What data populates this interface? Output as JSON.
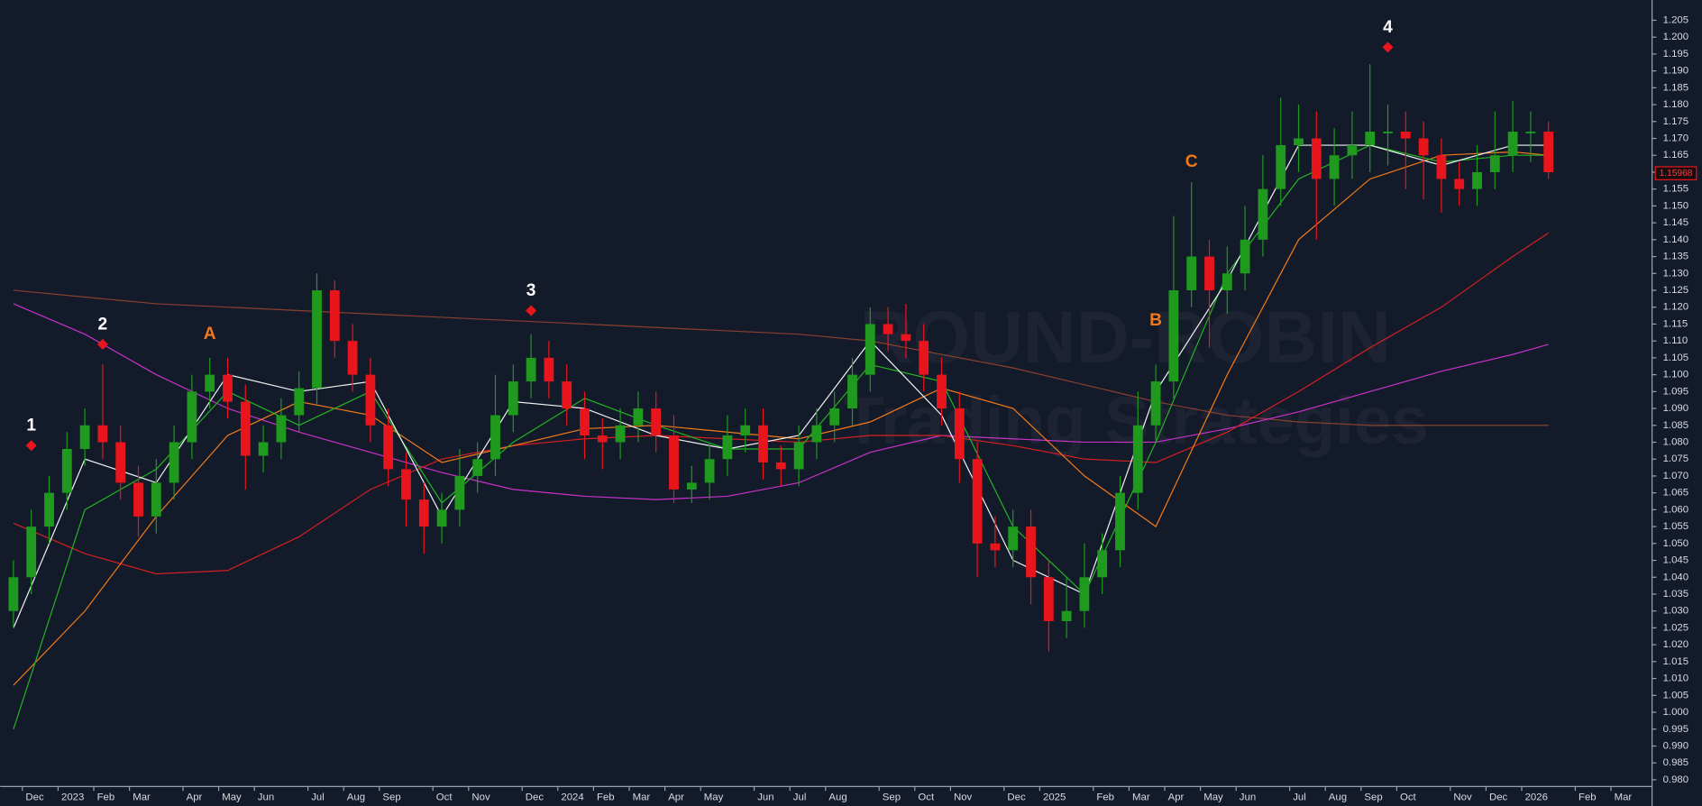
{
  "chart_data": {
    "type": "candlestick",
    "watermark": {
      "line1": "ROUND-ROBIN",
      "line2": "Trading Strategies"
    },
    "categories": [
      null,
      "Dec",
      null,
      "2023",
      null,
      "Feb",
      null,
      "Mar",
      null,
      null,
      "Apr",
      null,
      "May",
      null,
      "Jun",
      null,
      null,
      "Jul",
      null,
      "Aug",
      null,
      "Sep",
      null,
      null,
      "Oct",
      null,
      "Nov",
      null,
      null,
      "Dec",
      null,
      "2024",
      null,
      "Feb",
      null,
      "Mar",
      null,
      "Apr",
      null,
      "May",
      null,
      null,
      "Jun",
      null,
      "Jul",
      null,
      "Aug",
      null,
      null,
      "Sep",
      null,
      "Oct",
      null,
      "Nov",
      null,
      null,
      "Dec",
      null,
      "2025",
      null,
      null,
      "Feb",
      null,
      "Mar",
      null,
      "Apr",
      null,
      "May",
      null,
      "Jun",
      null,
      null,
      "Jul",
      null,
      "Aug",
      null,
      "Sep",
      null,
      "Oct",
      null,
      null,
      "Nov",
      null,
      "Dec",
      null,
      "2026",
      null,
      null,
      "Feb",
      null,
      "Mar",
      null
    ],
    "open": [
      1.03,
      1.04,
      1.055,
      1.065,
      1.078,
      1.085,
      1.08,
      1.068,
      1.058,
      1.068,
      1.08,
      1.095,
      1.1,
      1.092,
      1.076,
      1.08,
      1.088,
      1.096,
      1.125,
      1.11,
      1.1,
      1.085,
      1.072,
      1.063,
      1.055,
      1.06,
      1.07,
      1.075,
      1.088,
      1.098,
      1.105,
      1.098,
      1.09,
      1.082,
      1.08,
      1.085,
      1.09,
      1.082,
      1.066,
      1.068,
      1.075,
      1.082,
      1.085,
      1.074,
      1.072,
      1.08,
      1.085,
      1.09,
      1.1,
      1.115,
      1.112,
      1.11,
      1.1,
      1.09,
      1.075,
      1.05,
      1.048,
      1.055,
      1.04,
      1.027,
      1.03,
      1.04,
      1.048,
      1.065,
      1.085,
      1.098,
      1.125,
      1.135,
      1.125,
      1.13,
      1.14,
      1.155,
      1.168,
      1.17,
      1.158,
      1.165,
      1.168,
      1.172,
      1.172,
      1.17,
      1.165,
      1.158,
      1.155,
      1.16,
      1.165,
      1.172,
      1.172,
      null,
      null,
      null,
      null,
      null
    ],
    "high": [
      1.045,
      1.06,
      1.07,
      1.083,
      1.09,
      1.103,
      1.085,
      1.073,
      1.075,
      1.085,
      1.1,
      1.105,
      1.105,
      1.097,
      1.085,
      1.093,
      1.101,
      1.13,
      1.128,
      1.115,
      1.105,
      1.09,
      1.077,
      1.068,
      1.065,
      1.078,
      1.08,
      1.1,
      1.103,
      1.112,
      1.11,
      1.103,
      1.095,
      1.087,
      1.09,
      1.095,
      1.095,
      1.088,
      1.073,
      1.08,
      1.088,
      1.09,
      1.09,
      1.079,
      1.085,
      1.09,
      1.095,
      1.105,
      1.12,
      1.12,
      1.121,
      1.115,
      1.105,
      1.095,
      1.08,
      1.058,
      1.06,
      1.06,
      1.045,
      1.04,
      1.05,
      1.053,
      1.07,
      1.095,
      1.103,
      1.147,
      1.157,
      1.14,
      1.138,
      1.15,
      1.165,
      1.182,
      1.18,
      1.178,
      1.173,
      1.178,
      1.192,
      1.18,
      1.178,
      1.175,
      1.17,
      1.163,
      1.168,
      1.178,
      1.181,
      1.178,
      1.175,
      null,
      null,
      null,
      null,
      null
    ],
    "low": [
      1.025,
      1.035,
      1.05,
      1.06,
      1.073,
      1.075,
      1.063,
      1.052,
      1.053,
      1.063,
      1.075,
      1.09,
      1.087,
      1.066,
      1.071,
      1.075,
      1.083,
      1.091,
      1.105,
      1.095,
      1.08,
      1.067,
      1.055,
      1.047,
      1.05,
      1.055,
      1.065,
      1.07,
      1.083,
      1.093,
      1.093,
      1.085,
      1.075,
      1.072,
      1.075,
      1.08,
      1.077,
      1.062,
      1.062,
      1.063,
      1.07,
      1.077,
      1.069,
      1.067,
      1.067,
      1.075,
      1.08,
      1.085,
      1.095,
      1.107,
      1.105,
      1.095,
      1.085,
      1.068,
      1.04,
      1.043,
      1.043,
      1.032,
      1.018,
      1.022,
      1.025,
      1.035,
      1.043,
      1.06,
      1.08,
      1.093,
      1.12,
      1.108,
      1.118,
      1.125,
      1.135,
      1.15,
      1.16,
      1.14,
      1.15,
      1.158,
      1.16,
      1.162,
      1.155,
      1.152,
      1.148,
      1.15,
      1.15,
      1.155,
      1.16,
      1.163,
      1.158,
      null,
      null,
      null,
      null,
      null
    ],
    "close": [
      1.04,
      1.055,
      1.065,
      1.078,
      1.085,
      1.08,
      1.068,
      1.058,
      1.068,
      1.08,
      1.095,
      1.1,
      1.092,
      1.076,
      1.08,
      1.088,
      1.096,
      1.125,
      1.11,
      1.1,
      1.085,
      1.072,
      1.063,
      1.055,
      1.06,
      1.07,
      1.075,
      1.088,
      1.098,
      1.105,
      1.098,
      1.09,
      1.082,
      1.08,
      1.085,
      1.09,
      1.082,
      1.066,
      1.068,
      1.075,
      1.082,
      1.085,
      1.074,
      1.072,
      1.08,
      1.085,
      1.09,
      1.1,
      1.115,
      1.112,
      1.11,
      1.1,
      1.09,
      1.075,
      1.05,
      1.048,
      1.055,
      1.04,
      1.027,
      1.03,
      1.04,
      1.048,
      1.065,
      1.085,
      1.098,
      1.125,
      1.135,
      1.125,
      1.13,
      1.14,
      1.155,
      1.168,
      1.17,
      1.158,
      1.165,
      1.168,
      1.172,
      1.172,
      1.17,
      1.165,
      1.158,
      1.155,
      1.16,
      1.165,
      1.172,
      1.172,
      1.16,
      null,
      null,
      null,
      null,
      null
    ],
    "up_color": "#1f9a1f",
    "down_color": "#e8161c",
    "ma_index": [
      0,
      4,
      8,
      12,
      16,
      20,
      24,
      28,
      32,
      36,
      40,
      44,
      48,
      52,
      56,
      60,
      64,
      68,
      72,
      76,
      80,
      84,
      86
    ],
    "lines": [
      {
        "color": "#8a4030",
        "values": [
          1.125,
          1.123,
          1.121,
          1.12,
          1.119,
          1.118,
          1.117,
          1.116,
          1.115,
          1.114,
          1.113,
          1.112,
          1.11,
          1.106,
          1.102,
          1.097,
          1.092,
          1.088,
          1.086,
          1.085,
          1.085,
          1.085,
          1.085
        ]
      },
      {
        "color": "#c832c8",
        "values": [
          1.121,
          1.112,
          1.1,
          1.09,
          1.083,
          1.077,
          1.071,
          1.066,
          1.064,
          1.063,
          1.064,
          1.068,
          1.077,
          1.082,
          1.081,
          1.08,
          1.08,
          1.084,
          1.089,
          1.095,
          1.101,
          1.106,
          1.109
        ]
      },
      {
        "color": "#d42020",
        "values": [
          1.056,
          1.047,
          1.041,
          1.042,
          1.052,
          1.066,
          1.075,
          1.079,
          1.081,
          1.082,
          1.081,
          1.08,
          1.082,
          1.082,
          1.079,
          1.075,
          1.074,
          1.083,
          1.095,
          1.108,
          1.12,
          1.135,
          1.142
        ]
      },
      {
        "color": "#f07a1a",
        "values": [
          1.008,
          1.03,
          1.058,
          1.082,
          1.092,
          1.088,
          1.074,
          1.079,
          1.084,
          1.085,
          1.083,
          1.081,
          1.086,
          1.096,
          1.09,
          1.07,
          1.055,
          1.1,
          1.14,
          1.158,
          1.165,
          1.166,
          1.165
        ]
      },
      {
        "color": "#22b422",
        "values": [
          0.995,
          1.06,
          1.072,
          1.095,
          1.085,
          1.095,
          1.062,
          1.08,
          1.093,
          1.085,
          1.078,
          1.078,
          1.103,
          1.098,
          1.055,
          1.035,
          1.08,
          1.13,
          1.158,
          1.168,
          1.163,
          1.165,
          1.165
        ]
      },
      {
        "color": "#f2f2f2",
        "values": [
          1.025,
          1.075,
          1.068,
          1.1,
          1.095,
          1.098,
          1.058,
          1.092,
          1.09,
          1.082,
          1.078,
          1.082,
          1.11,
          1.088,
          1.045,
          1.035,
          1.095,
          1.128,
          1.168,
          1.168,
          1.162,
          1.168,
          1.168
        ]
      }
    ],
    "annotations": [
      {
        "text": "1",
        "index": 1,
        "y": 1.079,
        "marker": true,
        "color": "#ffffff"
      },
      {
        "text": "2",
        "index": 5,
        "y": 1.109,
        "marker": true,
        "color": "#ffffff"
      },
      {
        "text": "A",
        "index": 11,
        "y": 1.112,
        "marker": false,
        "color": "#f07a1a"
      },
      {
        "text": "3",
        "index": 29,
        "y": 1.119,
        "marker": true,
        "color": "#ffffff"
      },
      {
        "text": "B",
        "index": 64,
        "y": 1.116,
        "marker": false,
        "color": "#f07a1a"
      },
      {
        "text": "C",
        "index": 66,
        "y": 1.163,
        "marker": false,
        "color": "#f07a1a"
      },
      {
        "text": "4",
        "index": 77,
        "y": 1.197,
        "marker": true,
        "color": "#ffffff"
      }
    ],
    "marker_color": "#e8161c",
    "last_price": 1.15968,
    "ylim": [
      0.978,
      1.211
    ],
    "yticks": [
      {
        "value": 1.205,
        "label": "1.205"
      },
      {
        "value": 1.2,
        "label": "1.200"
      },
      {
        "value": 1.195,
        "label": "1.195"
      },
      {
        "value": 1.19,
        "label": "1.190"
      },
      {
        "value": 1.185,
        "label": "1.185"
      },
      {
        "value": 1.18,
        "label": "1.180"
      },
      {
        "value": 1.175,
        "label": "1.175"
      },
      {
        "value": 1.17,
        "label": "1.170"
      },
      {
        "value": 1.165,
        "label": "1.165"
      },
      {
        "value": 1.16,
        "label": "1.160"
      },
      {
        "value": 1.155,
        "label": "1.155"
      },
      {
        "value": 1.15,
        "label": "1.150"
      },
      {
        "value": 1.145,
        "label": "1.145"
      },
      {
        "value": 1.14,
        "label": "1.140"
      },
      {
        "value": 1.135,
        "label": "1.135"
      },
      {
        "value": 1.13,
        "label": "1.130"
      },
      {
        "value": 1.125,
        "label": "1.125"
      },
      {
        "value": 1.12,
        "label": "1.120"
      },
      {
        "value": 1.115,
        "label": "1.115"
      },
      {
        "value": 1.11,
        "label": "1.110"
      },
      {
        "value": 1.105,
        "label": "1.105"
      },
      {
        "value": 1.1,
        "label": "1.100"
      },
      {
        "value": 1.095,
        "label": "1.095"
      },
      {
        "value": 1.09,
        "label": "1.090"
      },
      {
        "value": 1.085,
        "label": "1.085"
      },
      {
        "value": 1.08,
        "label": "1.080"
      },
      {
        "value": 1.075,
        "label": "1.075"
      },
      {
        "value": 1.07,
        "label": "1.070"
      },
      {
        "value": 1.065,
        "label": "1.065"
      },
      {
        "value": 1.06,
        "label": "1.060"
      },
      {
        "value": 1.055,
        "label": "1.055"
      },
      {
        "value": 1.05,
        "label": "1.050"
      },
      {
        "value": 1.045,
        "label": "1.045"
      },
      {
        "value": 1.04,
        "label": "1.040"
      },
      {
        "value": 1.035,
        "label": "1.035"
      },
      {
        "value": 1.03,
        "label": "1.030"
      },
      {
        "value": 1.025,
        "label": "1.025"
      },
      {
        "value": 1.02,
        "label": "1.020"
      },
      {
        "value": 1.015,
        "label": "1.015"
      },
      {
        "value": 1.01,
        "label": "1.010"
      },
      {
        "value": 1.005,
        "label": "1.005"
      },
      {
        "value": 1.0,
        "label": "1.000"
      },
      {
        "value": 0.995,
        "label": "0.995"
      },
      {
        "value": 0.99,
        "label": "0.990"
      },
      {
        "value": 0.985,
        "label": "0.985"
      },
      {
        "value": 0.98,
        "label": "0.980"
      }
    ],
    "grid": false
  }
}
